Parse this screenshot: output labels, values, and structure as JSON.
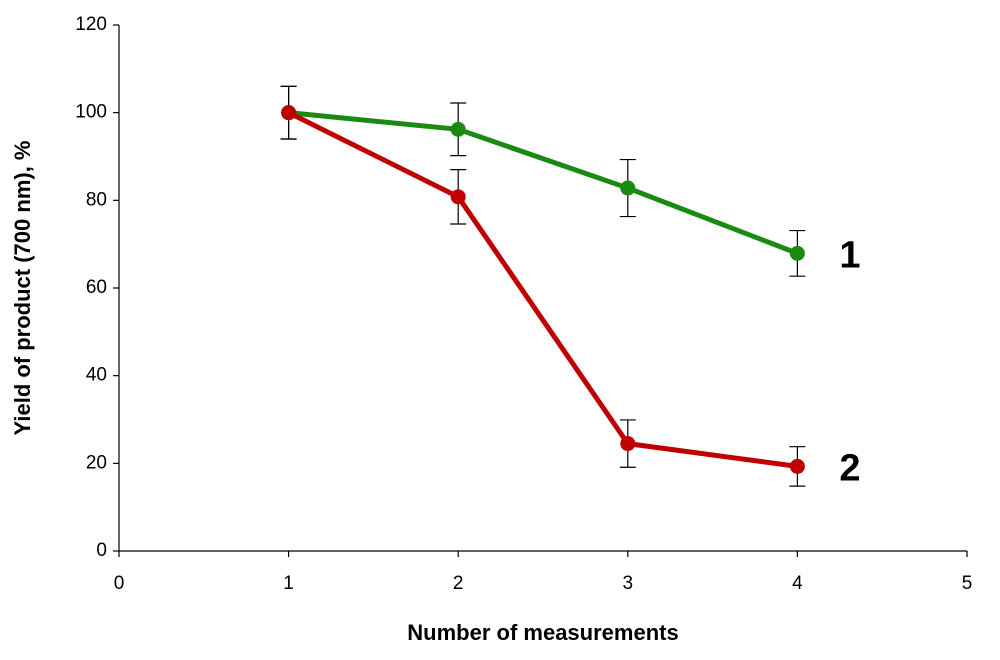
{
  "chart_data": {
    "type": "line",
    "xlabel": "Number of measurements",
    "ylabel": "Yield of product (700 nm), %",
    "x": [
      1,
      2,
      3,
      4
    ],
    "series": [
      {
        "name": "1",
        "color": "#1a8a12",
        "values": [
          100,
          96.2,
          82.8,
          67.9
        ],
        "errors": [
          6,
          6,
          6.5,
          5.2
        ]
      },
      {
        "name": "2",
        "color": "#c00000",
        "values": [
          100,
          80.8,
          24.5,
          19.3
        ],
        "errors": [
          6,
          6.2,
          5.4,
          4.5
        ]
      }
    ],
    "xlim": [
      0,
      5
    ],
    "xticks": [
      0,
      1,
      2,
      3,
      4,
      5
    ],
    "ylim": [
      0,
      120
    ],
    "yticks": [
      0,
      20,
      40,
      60,
      80,
      100,
      120
    ],
    "grid": false
  }
}
